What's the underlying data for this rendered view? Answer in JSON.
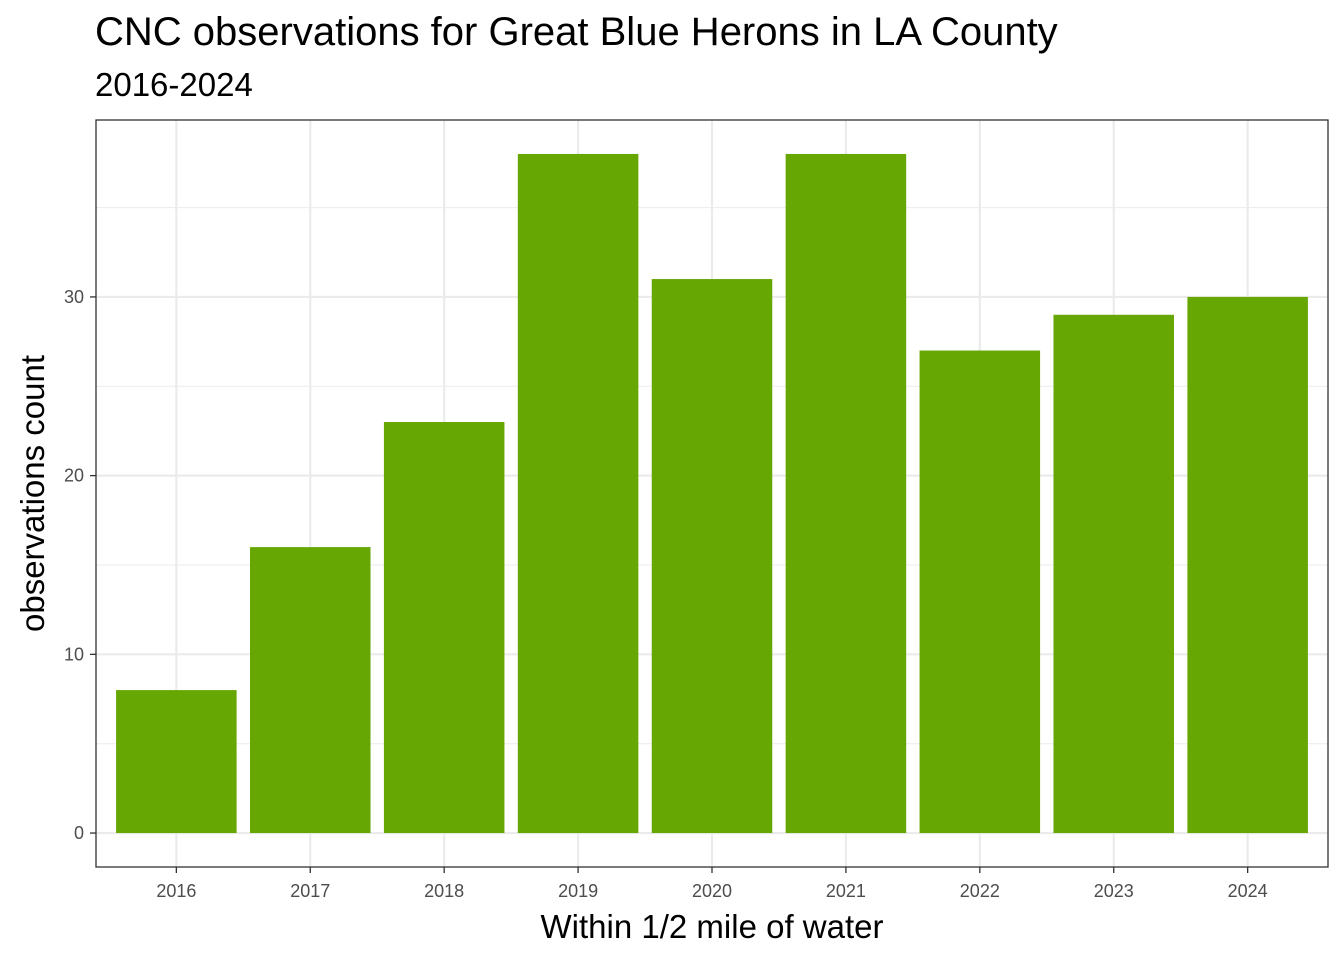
{
  "chart_data": {
    "type": "bar",
    "title": "CNC observations for Great Blue Herons in LA County",
    "subtitle": "2016-2024",
    "xlabel": "Within 1/2 mile of water",
    "ylabel": "observations count",
    "categories": [
      "2016",
      "2017",
      "2018",
      "2019",
      "2020",
      "2021",
      "2022",
      "2023",
      "2024"
    ],
    "values": [
      8,
      16,
      23,
      38,
      31,
      38,
      27,
      29,
      30
    ],
    "ylim": [
      -1.9,
      39.9
    ],
    "yticks": [
      0,
      10,
      20,
      30
    ],
    "yticks_minor": [
      5,
      15,
      25,
      35
    ],
    "grid": true,
    "legend": "none",
    "bar_color": "#66a703"
  }
}
